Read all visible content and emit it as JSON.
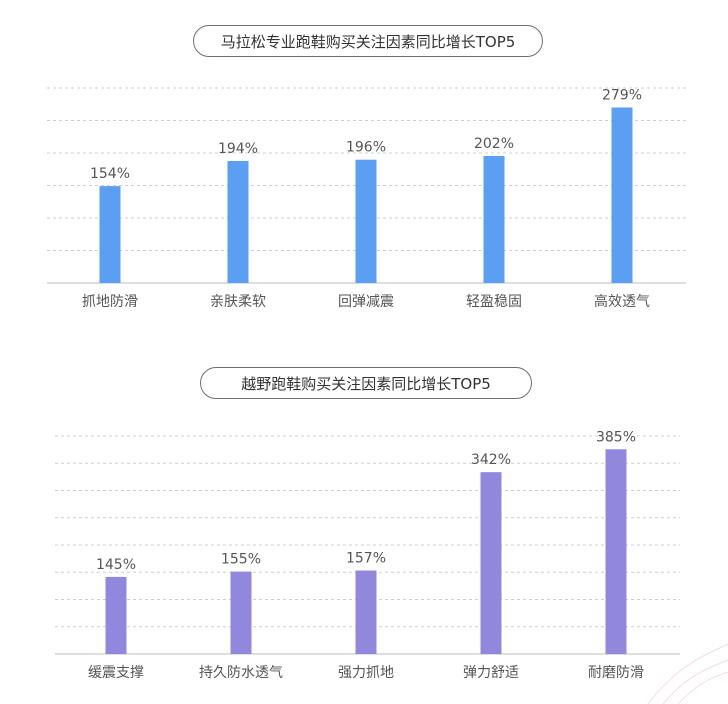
{
  "chart_data": [
    {
      "type": "bar",
      "title": "马拉松专业跑鞋购买关注因素同比增长TOP5",
      "categories": [
        "抓地防滑",
        "亲肤柔软",
        "回弹减震",
        "轻盈稳固",
        "高效透气"
      ],
      "values": [
        154,
        194,
        196,
        202,
        279
      ],
      "value_labels": [
        "154%",
        "194%",
        "196%",
        "202%",
        "279%"
      ],
      "unit": "%",
      "ylim": [
        0,
        310
      ],
      "grid": true,
      "bar_color": "#5b9ef2"
    },
    {
      "type": "bar",
      "title": "越野跑鞋购买关注因素同比增长TOP5",
      "categories": [
        "缓震支撑",
        "持久防水透气",
        "强力抓地",
        "弹力舒适",
        "耐磨防滑"
      ],
      "values": [
        145,
        155,
        157,
        342,
        385
      ],
      "value_labels": [
        "145%",
        "155%",
        "157%",
        "342%",
        "385%"
      ],
      "unit": "%",
      "ylim": [
        0,
        410
      ],
      "grid": true,
      "bar_color": "#9188de"
    }
  ]
}
